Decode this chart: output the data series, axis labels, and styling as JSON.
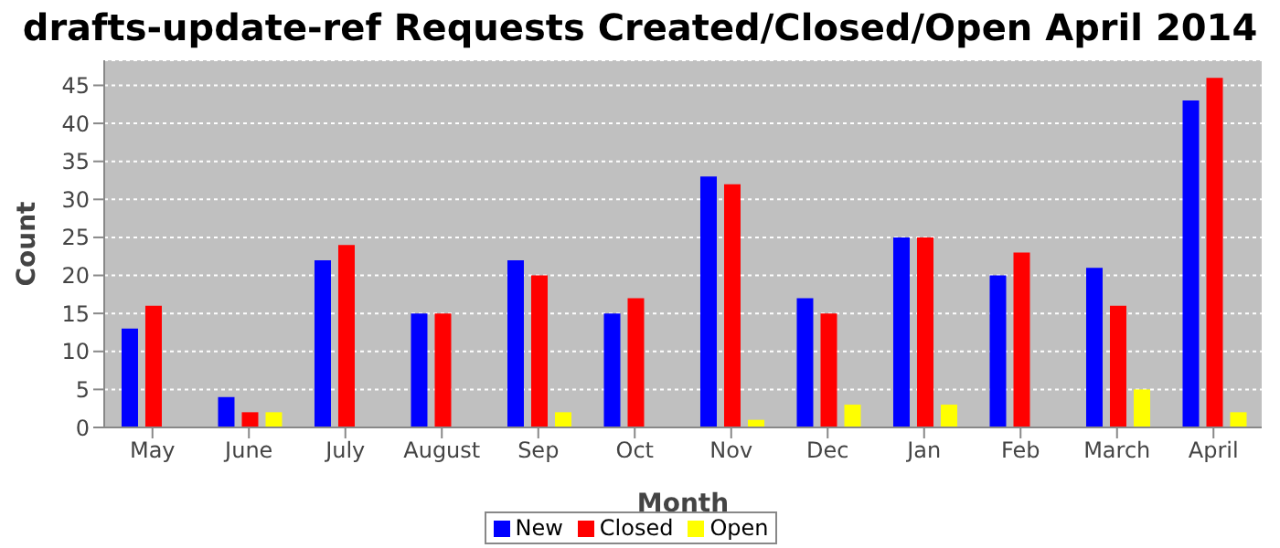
{
  "chart_data": {
    "type": "bar",
    "title": "drafts-update-ref Requests Created/Closed/Open April 2014",
    "xlabel": "Month",
    "ylabel": "Count",
    "categories": [
      "May",
      "June",
      "July",
      "August",
      "Sep",
      "Oct",
      "Nov",
      "Dec",
      "Jan",
      "Feb",
      "March",
      "April"
    ],
    "series": [
      {
        "name": "New",
        "color": "#0000ff",
        "values": [
          13,
          4,
          22,
          15,
          22,
          15,
          33,
          17,
          25,
          20,
          21,
          43
        ]
      },
      {
        "name": "Closed",
        "color": "#ff0000",
        "values": [
          16,
          2,
          24,
          15,
          20,
          17,
          32,
          15,
          25,
          23,
          16,
          46
        ]
      },
      {
        "name": "Open",
        "color": "#ffff00",
        "values": [
          0,
          2,
          0,
          0,
          2,
          0,
          1,
          3,
          3,
          0,
          5,
          2
        ]
      }
    ],
    "ylim": [
      0,
      48.3
    ],
    "yticks": [
      0,
      5,
      10,
      15,
      20,
      25,
      30,
      35,
      40,
      45
    ],
    "grid": "y",
    "legend": "bottom"
  }
}
